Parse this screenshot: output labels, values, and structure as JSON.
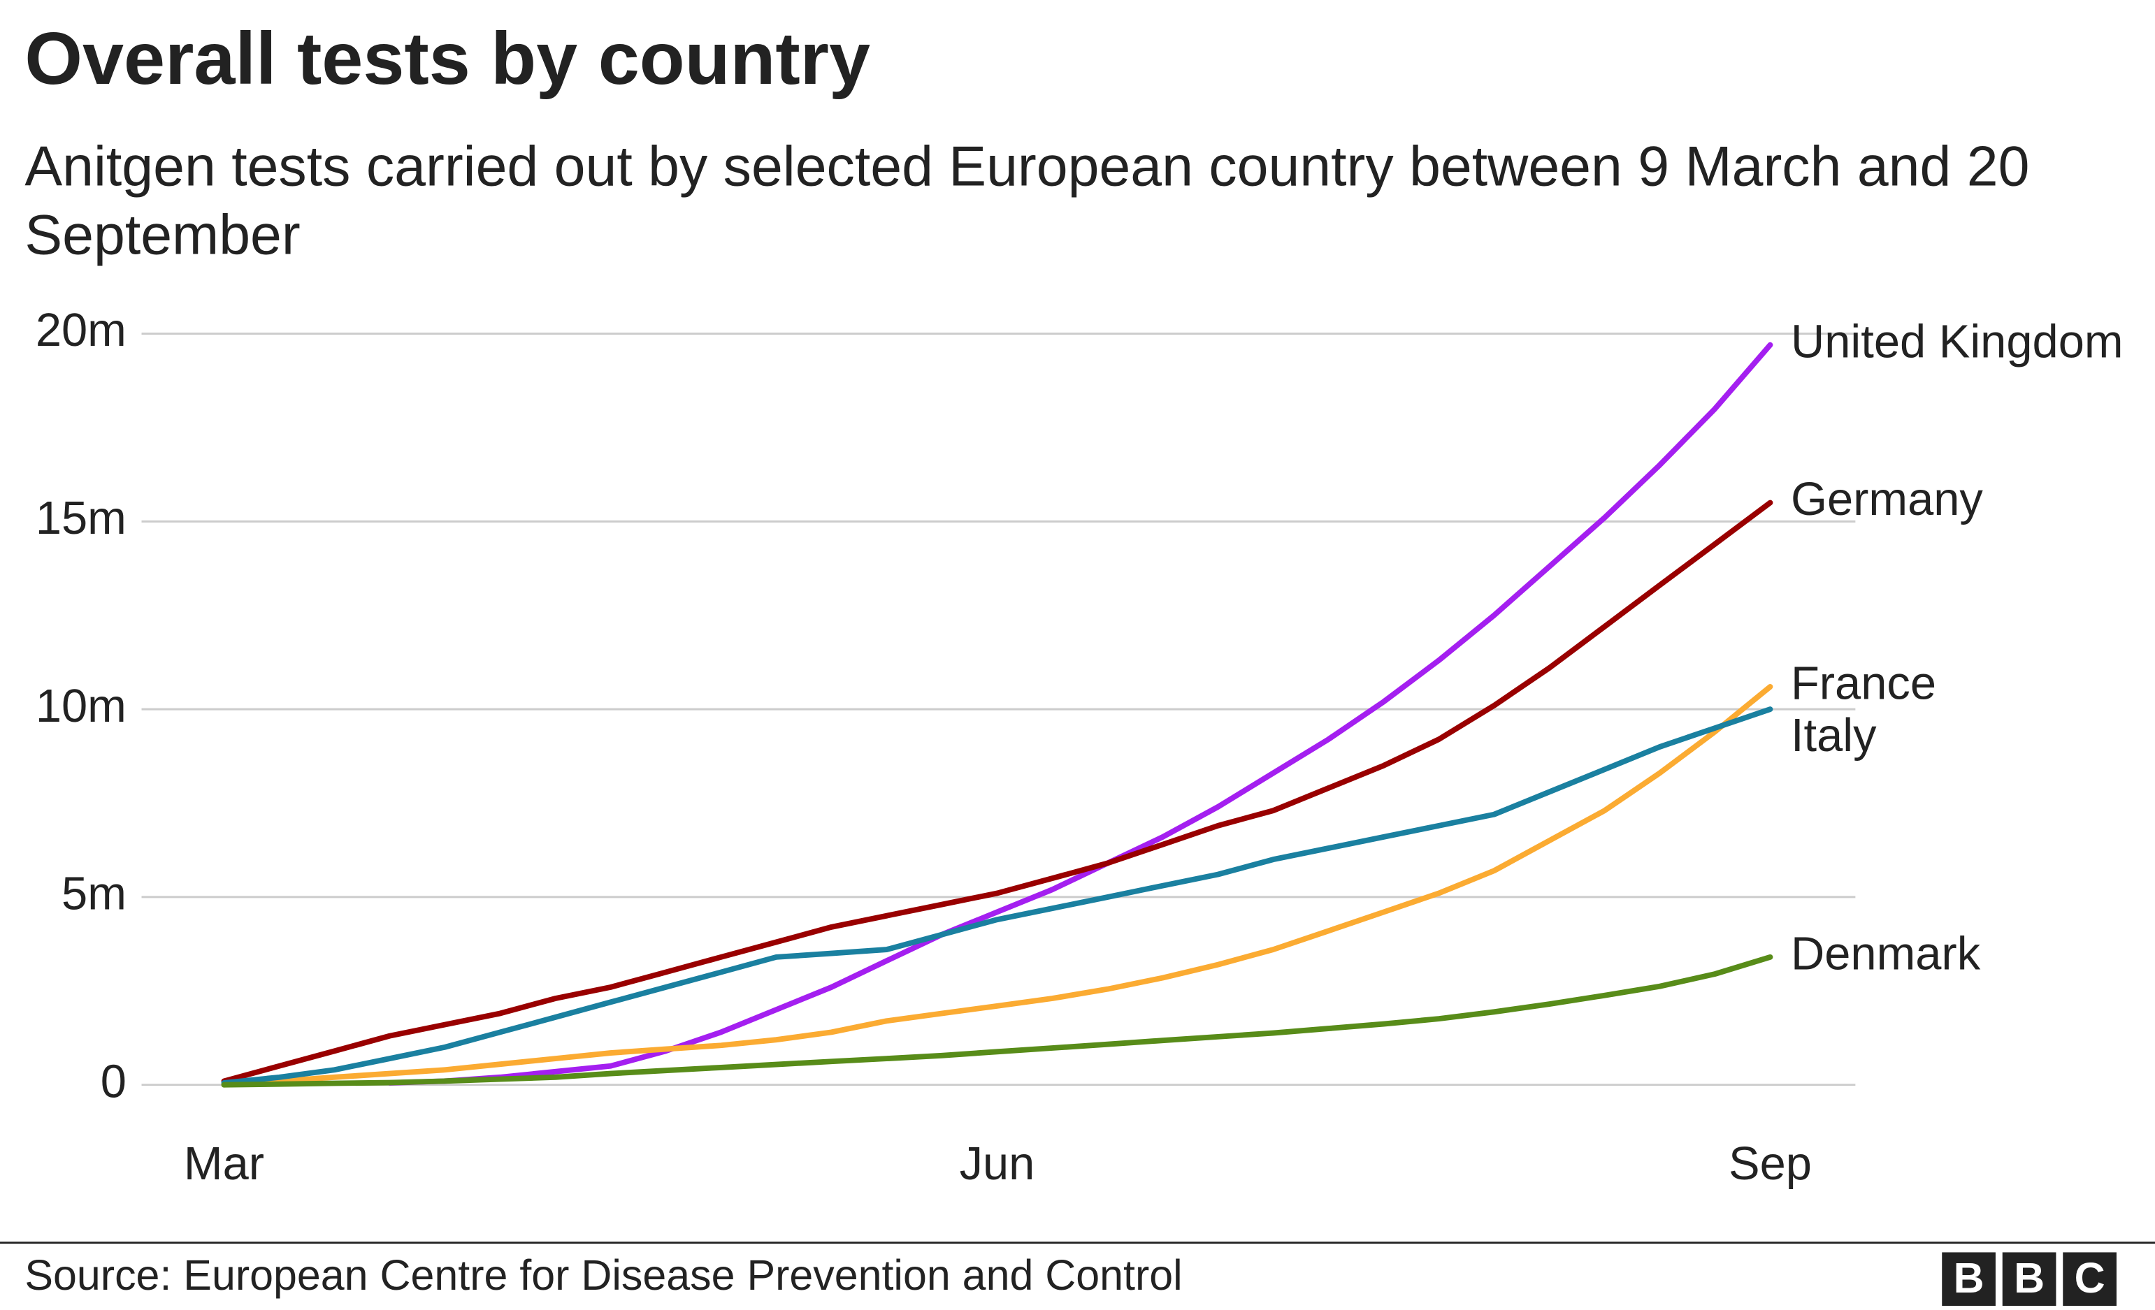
{
  "chart_data": {
    "type": "line",
    "title": "Overall tests by country",
    "subtitle": "Anitgen tests carried out by selected European country between 9 March and 20 September",
    "source": "Source: European Centre for Disease Prevention and Control",
    "logo": [
      "B",
      "B",
      "C"
    ],
    "categories": [
      "Mar",
      null,
      null,
      null,
      null,
      null,
      null,
      null,
      null,
      null,
      null,
      null,
      null,
      null,
      "Jun",
      null,
      null,
      null,
      null,
      null,
      null,
      null,
      null,
      null,
      null,
      null,
      null,
      null,
      "Sep"
    ],
    "ylim": [
      0,
      20
    ],
    "yticks": [
      0,
      {
        "value": 5,
        "label": "5m"
      },
      {
        "value": 10,
        "label": "10m"
      },
      {
        "value": 15,
        "label": "15m"
      },
      {
        "value": 20,
        "label": "20m"
      }
    ],
    "grid": true,
    "series": [
      {
        "name": "United Kingdom",
        "color": "#a41ff0",
        "values": [
          null,
          null,
          null,
          0.05,
          0.1,
          0.2,
          0.35,
          0.5,
          0.9,
          1.4,
          2.0,
          2.6,
          3.3,
          4.0,
          4.6,
          5.2,
          5.9,
          6.6,
          7.4,
          8.3,
          9.2,
          10.2,
          11.3,
          12.5,
          13.8,
          15.1,
          16.5,
          18.0,
          19.7
        ]
      },
      {
        "name": "Germany",
        "color": "#990000",
        "values": [
          0.1,
          0.5,
          0.9,
          1.3,
          1.6,
          1.9,
          2.3,
          2.6,
          3.0,
          3.4,
          3.8,
          4.2,
          4.5,
          4.8,
          5.1,
          5.5,
          5.9,
          6.4,
          6.9,
          7.3,
          7.9,
          8.5,
          9.2,
          10.1,
          11.1,
          12.2,
          13.3,
          14.4,
          15.5
        ]
      },
      {
        "name": "France",
        "color": "#fbab32",
        "values": [
          0.0,
          0.1,
          0.2,
          0.3,
          0.4,
          0.55,
          0.7,
          0.85,
          0.95,
          1.05,
          1.2,
          1.4,
          1.7,
          1.9,
          2.1,
          2.3,
          2.55,
          2.85,
          3.2,
          3.6,
          4.1,
          4.6,
          5.1,
          5.7,
          6.5,
          7.3,
          8.3,
          9.4,
          10.6
        ]
      },
      {
        "name": "Italy",
        "color": "#1a80a0",
        "values": [
          0.05,
          0.2,
          0.4,
          0.7,
          1.0,
          1.4,
          1.8,
          2.2,
          2.6,
          3.0,
          3.4,
          3.5,
          3.6,
          4.0,
          4.4,
          4.7,
          5.0,
          5.3,
          5.6,
          6.0,
          6.3,
          6.6,
          6.9,
          7.2,
          7.8,
          8.4,
          9.0,
          9.5,
          10.0
        ]
      },
      {
        "name": "Denmark",
        "color": "#588c19",
        "values": [
          0.0,
          0.02,
          0.04,
          0.06,
          0.1,
          0.15,
          0.2,
          0.3,
          0.38,
          0.46,
          0.54,
          0.62,
          0.7,
          0.78,
          0.88,
          0.98,
          1.08,
          1.18,
          1.28,
          1.38,
          1.5,
          1.62,
          1.76,
          1.94,
          2.15,
          2.38,
          2.62,
          2.95,
          3.4
        ]
      }
    ]
  }
}
